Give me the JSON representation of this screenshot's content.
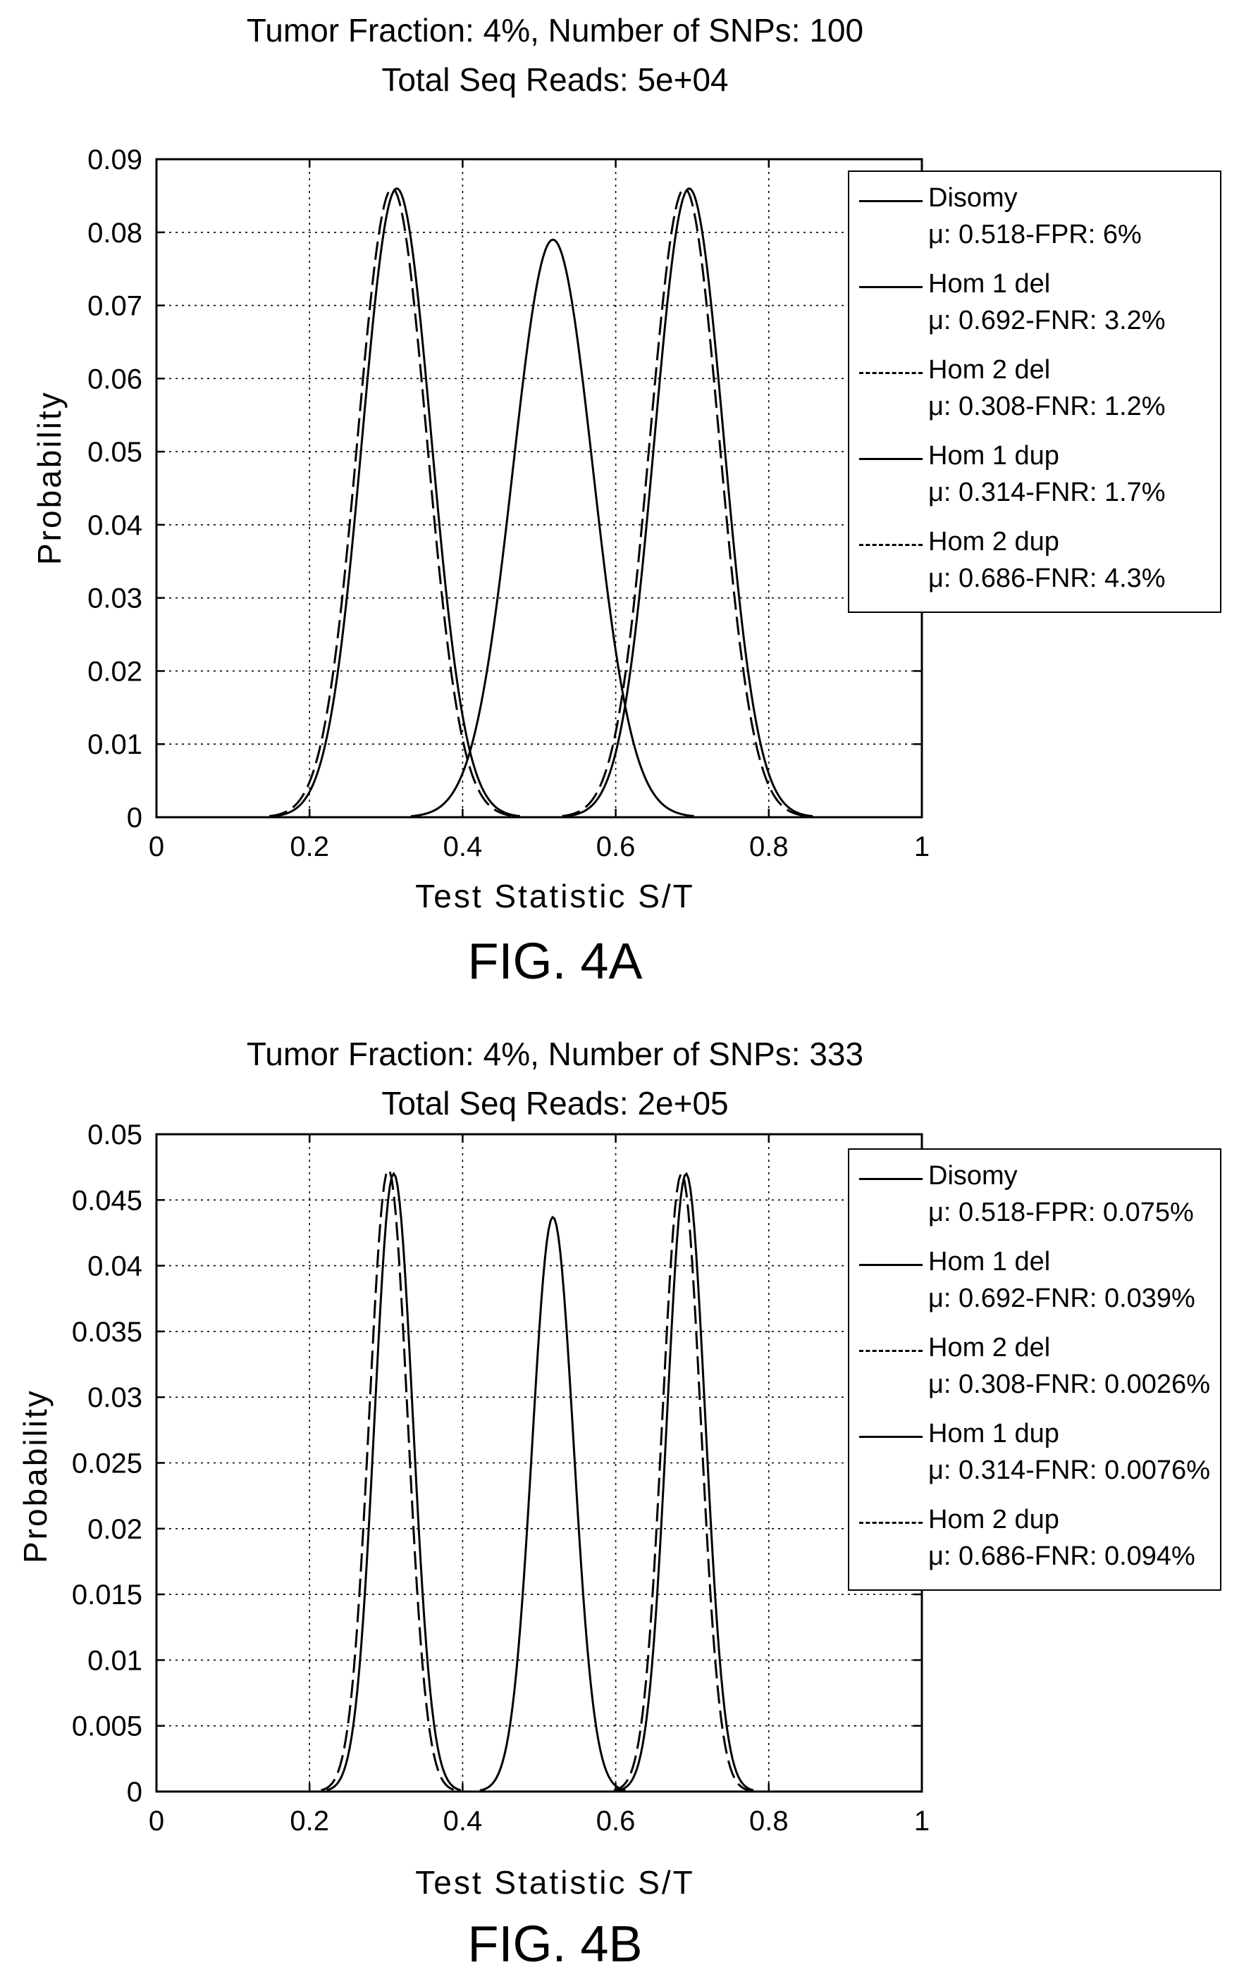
{
  "figures": [
    {
      "fig_label": "FIG. 4A",
      "title_line1": "Tumor Fraction: 4%, Number of SNPs: 100",
      "title_line2": "Total Seq Reads: 5e+04"
    },
    {
      "fig_label": "FIG. 4B",
      "title_line1": "Tumor Fraction: 4%, Number of SNPs: 333",
      "title_line2": "Total Seq Reads: 2e+05"
    }
  ],
  "chart_data": [
    {
      "type": "line",
      "title": "Tumor Fraction: 4%, Number of SNPs: 100 Total Seq Reads: 5e+04",
      "xlabel": "Test Statistic S/T",
      "ylabel": "Probability",
      "xlim": [
        0,
        1
      ],
      "ylim": [
        0,
        0.09
      ],
      "xticks": [
        "0",
        "0.2",
        "0.4",
        "0.6",
        "0.8",
        "1"
      ],
      "yticks": [
        "0",
        "0.01",
        "0.02",
        "0.03",
        "0.04",
        "0.05",
        "0.06",
        "0.07",
        "0.08",
        "0.09"
      ],
      "grid": true,
      "legend_position": "top-right",
      "series": [
        {
          "name": "Disomy",
          "stat": "μ: 0.518-FPR: 6%",
          "style": "solid",
          "mu": 0.518,
          "sigma": 0.052,
          "peak": 0.079
        },
        {
          "name": "Hom 1 del",
          "stat": "μ: 0.692-FNR: 3.2%",
          "style": "solid",
          "mu": 0.696,
          "sigma": 0.045,
          "peak": 0.086
        },
        {
          "name": "Hom 2 del",
          "stat": "μ: 0.308-FNR: 1.2%",
          "style": "dashed",
          "mu": 0.308,
          "sigma": 0.045,
          "peak": 0.086
        },
        {
          "name": "Hom 1 dup",
          "stat": "μ: 0.314-FNR: 1.7%",
          "style": "solid",
          "mu": 0.314,
          "sigma": 0.045,
          "peak": 0.086
        },
        {
          "name": "Hom 2 dup",
          "stat": "μ: 0.686-FNR: 4.3%",
          "style": "dashed",
          "mu": 0.69,
          "sigma": 0.045,
          "peak": 0.086
        }
      ]
    },
    {
      "type": "line",
      "title": "Tumor Fraction: 4%, Number of SNPs: 333 Total Seq Reads: 2e+05",
      "xlabel": "Test Statistic S/T",
      "ylabel": "Probability",
      "xlim": [
        0,
        1
      ],
      "ylim": [
        0,
        0.05
      ],
      "xticks": [
        "0",
        "0.2",
        "0.4",
        "0.6",
        "0.8",
        "1"
      ],
      "yticks": [
        "0",
        "0.005",
        "0.01",
        "0.015",
        "0.02",
        "0.025",
        "0.03",
        "0.035",
        "0.04",
        "0.045",
        "0.05"
      ],
      "grid": true,
      "legend_position": "top-right",
      "series": [
        {
          "name": "Disomy",
          "stat": "μ: 0.518-FPR: 0.075%",
          "style": "solid",
          "mu": 0.518,
          "sigma": 0.027,
          "peak": 0.0437
        },
        {
          "name": "Hom 1 del",
          "stat": "μ: 0.692-FNR: 0.039%",
          "style": "solid",
          "mu": 0.692,
          "sigma": 0.025,
          "peak": 0.047
        },
        {
          "name": "Hom 2 del",
          "stat": "μ: 0.308-FNR: 0.0026%",
          "style": "dashed",
          "mu": 0.303,
          "sigma": 0.025,
          "peak": 0.0473
        },
        {
          "name": "Hom 1 dup",
          "stat": "μ: 0.314-FNR: 0.0076%",
          "style": "solid",
          "mu": 0.31,
          "sigma": 0.025,
          "peak": 0.047
        },
        {
          "name": "Hom 2 dup",
          "stat": "μ: 0.686-FNR: 0.094%",
          "style": "dashed",
          "mu": 0.686,
          "sigma": 0.025,
          "peak": 0.047
        }
      ]
    }
  ]
}
